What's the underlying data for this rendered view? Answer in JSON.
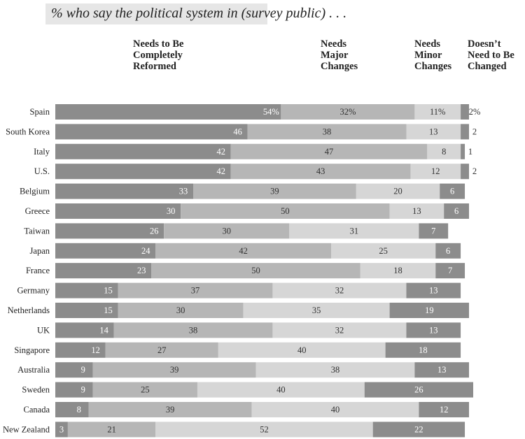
{
  "chart_data": {
    "type": "bar",
    "stacked": true,
    "orientation": "horizontal",
    "title": "% who say the political system in (survey public) . . .",
    "categories": [
      "Spain",
      "South Korea",
      "Italy",
      "U.S.",
      "Belgium",
      "Greece",
      "Taiwan",
      "Japan",
      "France",
      "Germany",
      "Netherlands",
      "UK",
      "Singapore",
      "Australia",
      "Sweden",
      "Canada",
      "New Zealand"
    ],
    "series": [
      {
        "name": "Needs to Be Completely Reformed",
        "color": "#8c8c8c",
        "label_color": "#ffffff",
        "values": [
          54,
          46,
          42,
          42,
          33,
          30,
          26,
          24,
          23,
          15,
          15,
          14,
          12,
          9,
          9,
          8,
          3
        ]
      },
      {
        "name": "Needs Major Changes",
        "color": "#b6b6b6",
        "label_color": "#333333",
        "values": [
          32,
          38,
          47,
          43,
          39,
          50,
          30,
          42,
          50,
          37,
          30,
          38,
          27,
          39,
          25,
          39,
          21
        ]
      },
      {
        "name": "Needs Minor Changes",
        "color": "#d6d6d6",
        "label_color": "#333333",
        "values": [
          11,
          13,
          8,
          12,
          20,
          13,
          31,
          25,
          18,
          32,
          35,
          32,
          40,
          38,
          40,
          40,
          52
        ]
      },
      {
        "name": "Doesn't Need to Be Changed",
        "color": "#8c8c8c",
        "label_color": "#ffffff",
        "values": [
          2,
          2,
          1,
          2,
          6,
          6,
          7,
          6,
          7,
          13,
          19,
          13,
          18,
          13,
          26,
          12,
          22
        ]
      }
    ],
    "first_row_percent_suffix": true,
    "xlim": [
      0,
      100
    ]
  }
}
